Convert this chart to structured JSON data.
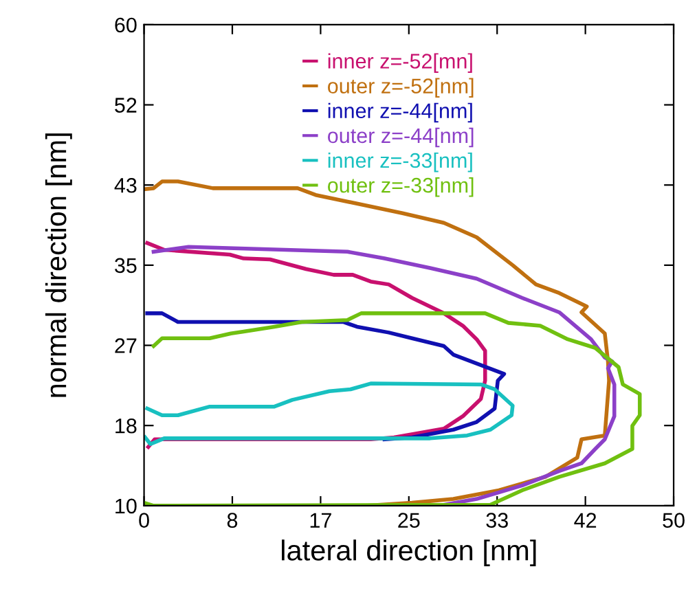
{
  "chart_data": {
    "type": "line",
    "xlabel": "lateral direction [nm]",
    "ylabel": "normal direction [nm]",
    "xlim": [
      0,
      50
    ],
    "ylim": [
      10,
      60
    ],
    "xticks": [
      0,
      {
        "value": 8.333,
        "label": "8"
      },
      {
        "value": 16.667,
        "label": "17"
      },
      25,
      {
        "value": 33.333,
        "label": "33"
      },
      {
        "value": 41.667,
        "label": "42"
      },
      50
    ],
    "yticks": [
      10,
      {
        "value": 18.333,
        "label": "18"
      },
      {
        "value": 26.667,
        "label": "27"
      },
      35,
      {
        "value": 43.333,
        "label": "43"
      },
      {
        "value": 51.667,
        "label": "52"
      },
      60
    ],
    "grid": false,
    "legend": "top right",
    "marker": "none",
    "line_style": "solid",
    "series": [
      {
        "name": "inner z=-52[mn]",
        "color": "#c8106e",
        "x": [
          0.3,
          1.9,
          8.1,
          9.4,
          11.9,
          15.3,
          17.9,
          19.7,
          21.4,
          23.1,
          25.3,
          28.3,
          30.1,
          31.4,
          32.2,
          32.2,
          31.8,
          30.1,
          28.3,
          26.2,
          23.6,
          21.4,
          1.0,
          0.4
        ],
        "values": [
          37.3,
          36.6,
          36.1,
          35.7,
          35.6,
          34.6,
          34.0,
          34.0,
          33.3,
          33.0,
          31.6,
          30.0,
          28.7,
          27.3,
          26.1,
          23.0,
          21.1,
          19.3,
          18.0,
          17.6,
          17.1,
          16.9,
          16.9,
          16.1
        ]
      },
      {
        "name": "outer z=-52[nm]",
        "color": "#c07010",
        "x": [
          0,
          0.9,
          1.7,
          3.2,
          6.5,
          14.5,
          16.2,
          20.1,
          24.4,
          28.3,
          31.4,
          34.8,
          37.0,
          39.2,
          41.8,
          41.3,
          43.5,
          43.8,
          43.9,
          43.5,
          41.3,
          40.9,
          37.9,
          33.5,
          29.2,
          25.3,
          21.0
        ],
        "values": [
          42.9,
          43.0,
          43.7,
          43.7,
          43.0,
          43.0,
          42.3,
          41.4,
          40.4,
          39.4,
          37.9,
          35.0,
          33.0,
          32.1,
          30.7,
          30.1,
          27.9,
          25.0,
          23.0,
          17.3,
          16.9,
          15.0,
          13.0,
          11.6,
          10.7,
          10.3,
          10.0
        ]
      },
      {
        "name": "inner z=-44[nm]",
        "color": "#1010b0",
        "x": [
          0.3,
          1.7,
          3.2,
          18.8,
          20.1,
          23.1,
          25.3,
          28.3,
          29.2,
          34.0,
          33.4,
          33.1,
          31.4,
          29.2,
          25.3,
          22.7
        ],
        "values": [
          30.0,
          30.0,
          29.1,
          29.1,
          28.6,
          28.0,
          27.4,
          26.6,
          25.7,
          23.7,
          23.0,
          20.1,
          18.7,
          17.9,
          17.1,
          16.9
        ]
      },
      {
        "name": "outer z=-44[nm]",
        "color": "#8c40c8",
        "x": [
          0.9,
          4.2,
          19.2,
          22.7,
          27.0,
          31.4,
          35.7,
          39.2,
          42.2,
          43.5,
          44.2,
          43.8,
          44.4,
          44.4,
          43.5,
          42.6,
          41.3,
          39.2,
          35.7,
          31.4,
          27.9
        ],
        "values": [
          36.4,
          36.9,
          36.4,
          35.7,
          34.7,
          33.6,
          31.6,
          30.1,
          27.3,
          25.4,
          25.0,
          24.3,
          22.6,
          19.3,
          16.9,
          15.9,
          14.4,
          13.6,
          12.1,
          10.7,
          10.0
        ]
      },
      {
        "name": "inner z=-33[nm]",
        "color": "#18c0c0",
        "x": [
          0.3,
          1.7,
          3.2,
          6.2,
          12.3,
          14.0,
          17.5,
          19.5,
          21.4,
          31.8,
          33.1,
          34.8,
          34.7,
          32.7,
          30.5,
          27.0,
          1.9,
          0.6,
          0.1
        ],
        "values": [
          20.1,
          19.4,
          19.4,
          20.3,
          20.3,
          21.0,
          21.9,
          22.1,
          22.7,
          22.6,
          22.1,
          20.4,
          19.4,
          17.9,
          17.3,
          17.0,
          17.0,
          16.4,
          17.1
        ]
      },
      {
        "name": "outer z=-33[nm]",
        "color": "#70c010",
        "x": [
          0.9,
          1.7,
          6.2,
          8.2,
          9.4,
          12.3,
          14.9,
          19.2,
          20.5,
          32.2,
          34.4,
          37.4,
          40.0,
          42.6,
          44.8,
          45.2,
          46.8,
          46.8,
          46.1,
          46.1,
          43.5,
          39.2,
          35.7,
          32.7,
          0.9,
          0
        ],
        "values": [
          26.6,
          27.4,
          27.4,
          27.9,
          28.1,
          28.6,
          29.1,
          29.3,
          30.0,
          30.0,
          29.0,
          28.7,
          27.3,
          26.4,
          24.4,
          22.6,
          21.6,
          19.4,
          18.3,
          15.9,
          14.4,
          13.0,
          11.6,
          10.1,
          10.0,
          10.3
        ]
      }
    ]
  }
}
